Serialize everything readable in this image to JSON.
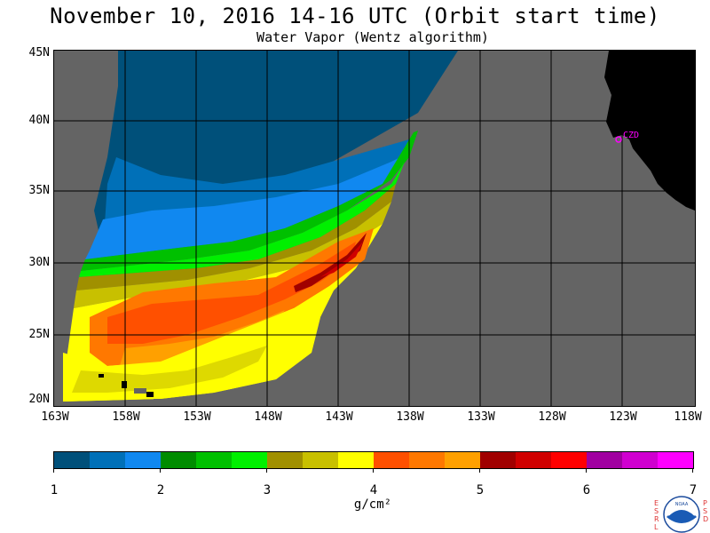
{
  "header": {
    "title": "November 10, 2016  14-16 UTC  (Orbit start time)",
    "subtitle": "Water Vapor (Wentz algorithm)"
  },
  "map": {
    "lat_labels": [
      "45N",
      "40N",
      "35N",
      "30N",
      "25N",
      "20N"
    ],
    "lon_labels": [
      "163W",
      "158W",
      "153W",
      "148W",
      "143W",
      "138W",
      "133W",
      "128W",
      "123W",
      "118W"
    ],
    "station_label": "CZD",
    "colors": {
      "no_data": "#646464",
      "land": "#000000",
      "grid": "#000000",
      "station": "#ff00ff"
    }
  },
  "colorbar": {
    "tick_labels": [
      "1",
      "2",
      "3",
      "4",
      "5",
      "6",
      "7"
    ],
    "units": "g/cm²",
    "colors": [
      "#00507a",
      "#0070b8",
      "#1088f0",
      "#008c00",
      "#00c000",
      "#00f000",
      "#a09000",
      "#c8c000",
      "#ffff00",
      "#ff5000",
      "#ff7800",
      "#ffa000",
      "#a00000",
      "#d00000",
      "#ff0000",
      "#a000a0",
      "#d000d0",
      "#ff00ff"
    ]
  },
  "logos": {
    "left_text": "ESRL",
    "right_text": "PSD",
    "center_text": "NOAA"
  }
}
